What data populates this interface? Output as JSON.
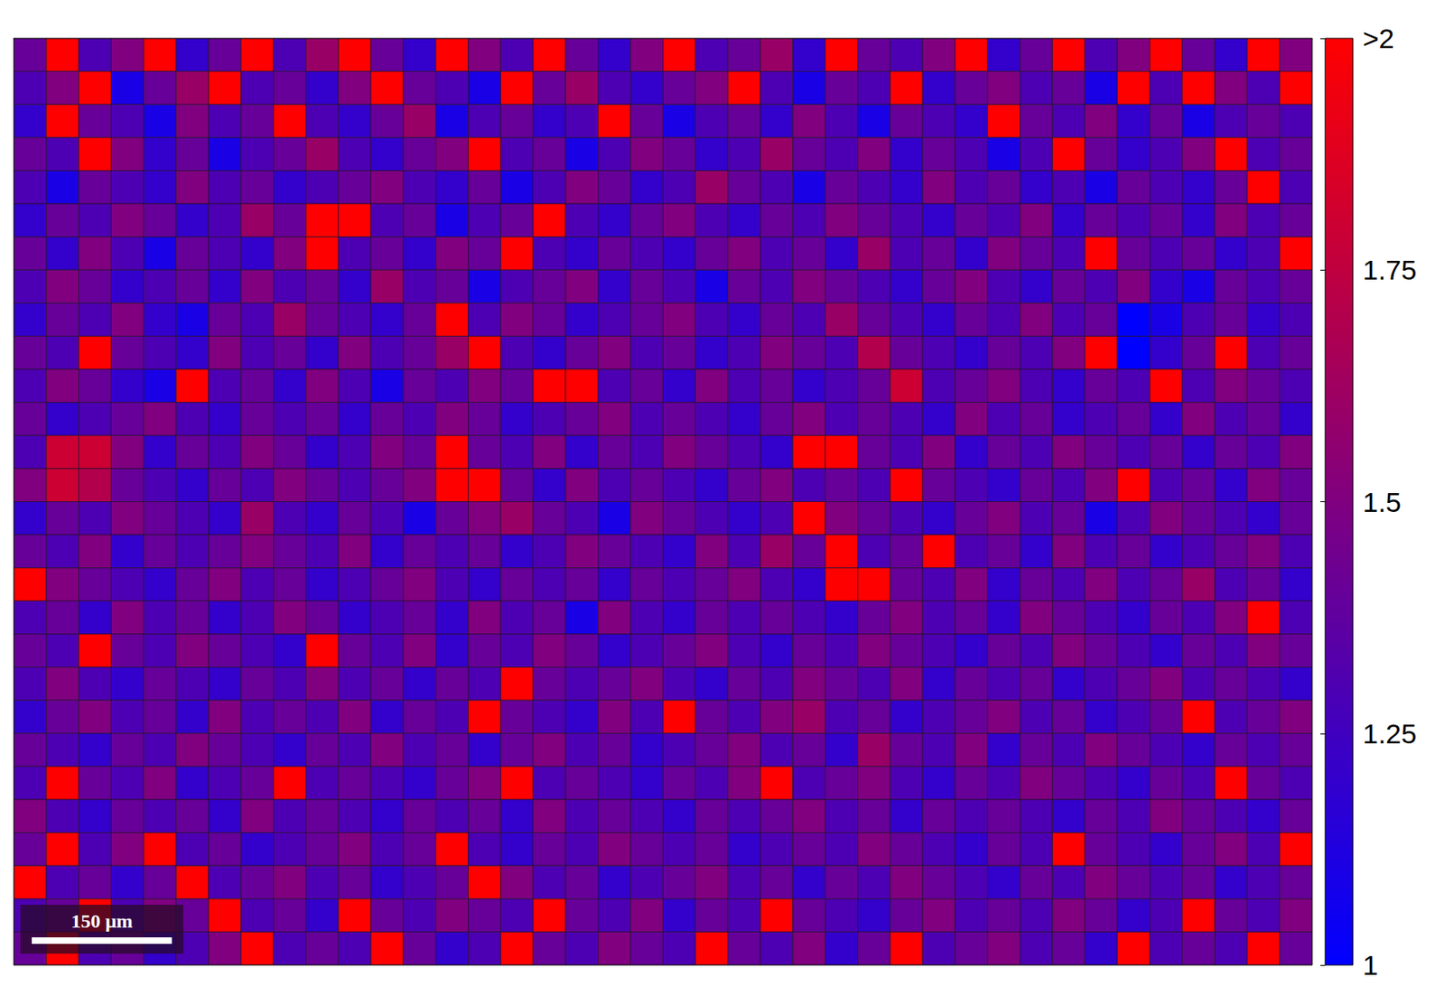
{
  "chart_data": {
    "type": "heatmap",
    "xlim": [
      0,
      1390
    ],
    "ylim": [
      0,
      960
    ],
    "tick_labels": false,
    "cells": [
      [
        1.4,
        2.2,
        1.3,
        1.5,
        2.2,
        1.2,
        1.4,
        2.2,
        1.3,
        1.6,
        2.2,
        1.4,
        1.2,
        2.2,
        1.5,
        1.3,
        2.2,
        1.4,
        1.2,
        1.5,
        2.2,
        1.3,
        1.4,
        1.6,
        1.2,
        2.2,
        1.4,
        1.3,
        1.5,
        2.2,
        1.2,
        1.4,
        2.2,
        1.3,
        1.5,
        2.2,
        1.4,
        1.2,
        2.2,
        1.5
      ],
      [
        1.3,
        1.5,
        2.2,
        1.1,
        1.4,
        1.6,
        2.2,
        1.3,
        1.4,
        1.2,
        1.5,
        2.2,
        1.4,
        1.3,
        1.1,
        2.2,
        1.4,
        1.6,
        1.3,
        1.2,
        1.4,
        1.5,
        2.2,
        1.3,
        1.1,
        1.4,
        1.3,
        2.2,
        1.2,
        1.4,
        1.5,
        1.3,
        1.4,
        1.1,
        2.2,
        1.3,
        2.2,
        1.5,
        1.3,
        2.2
      ],
      [
        1.2,
        2.2,
        1.4,
        1.3,
        1.1,
        1.5,
        1.3,
        1.4,
        2.2,
        1.3,
        1.2,
        1.4,
        1.6,
        1.1,
        1.3,
        1.4,
        1.2,
        1.3,
        2.2,
        1.4,
        1.1,
        1.3,
        1.4,
        1.2,
        1.5,
        1.3,
        1.1,
        1.4,
        1.3,
        1.2,
        2.2,
        1.4,
        1.3,
        1.5,
        1.2,
        1.4,
        1.1,
        1.3,
        1.4,
        1.3
      ],
      [
        1.4,
        1.3,
        2.2,
        1.5,
        1.2,
        1.4,
        1.1,
        1.3,
        1.4,
        1.6,
        1.3,
        1.2,
        1.4,
        1.5,
        2.2,
        1.3,
        1.4,
        1.1,
        1.3,
        1.5,
        1.4,
        1.2,
        1.3,
        1.6,
        1.4,
        1.3,
        1.5,
        1.2,
        1.4,
        1.3,
        1.1,
        1.3,
        2.2,
        1.4,
        1.2,
        1.3,
        1.5,
        2.2,
        1.3,
        1.4
      ],
      [
        1.3,
        1.1,
        1.4,
        1.3,
        1.2,
        1.5,
        1.3,
        1.4,
        1.2,
        1.3,
        1.4,
        1.5,
        1.3,
        1.2,
        1.4,
        1.1,
        1.3,
        1.5,
        1.4,
        1.2,
        1.3,
        1.6,
        1.4,
        1.3,
        1.1,
        1.4,
        1.3,
        1.2,
        1.5,
        1.3,
        1.4,
        1.2,
        1.3,
        1.1,
        1.4,
        1.3,
        1.2,
        1.4,
        2.2,
        1.3
      ],
      [
        1.2,
        1.4,
        1.3,
        1.5,
        1.4,
        1.2,
        1.3,
        1.6,
        1.4,
        2.2,
        2.2,
        1.3,
        1.4,
        1.1,
        1.3,
        1.4,
        2.2,
        1.3,
        1.2,
        1.4,
        1.5,
        1.3,
        1.2,
        1.4,
        1.3,
        1.5,
        1.4,
        1.3,
        1.2,
        1.4,
        1.3,
        1.5,
        1.2,
        1.4,
        1.3,
        1.4,
        1.2,
        1.5,
        1.3,
        1.4
      ],
      [
        1.4,
        1.2,
        1.5,
        1.3,
        1.1,
        1.4,
        1.3,
        1.2,
        1.5,
        2.2,
        1.3,
        1.4,
        1.2,
        1.5,
        1.4,
        2.2,
        1.3,
        1.2,
        1.4,
        1.3,
        1.2,
        1.4,
        1.5,
        1.3,
        1.4,
        1.2,
        1.6,
        1.3,
        1.4,
        1.2,
        1.5,
        1.4,
        1.3,
        2.2,
        1.4,
        1.3,
        1.4,
        1.2,
        1.3,
        2.2
      ],
      [
        1.3,
        1.5,
        1.4,
        1.2,
        1.3,
        1.4,
        1.2,
        1.5,
        1.3,
        1.4,
        1.2,
        1.6,
        1.3,
        1.4,
        1.1,
        1.3,
        1.4,
        1.5,
        1.2,
        1.4,
        1.3,
        1.1,
        1.4,
        1.3,
        1.5,
        1.4,
        1.3,
        1.2,
        1.4,
        1.5,
        1.3,
        1.2,
        1.4,
        1.3,
        1.5,
        1.2,
        1.1,
        1.4,
        1.3,
        1.4
      ],
      [
        1.2,
        1.4,
        1.3,
        1.5,
        1.2,
        1.1,
        1.4,
        1.3,
        1.6,
        1.4,
        1.3,
        1.2,
        1.4,
        2.2,
        1.3,
        1.5,
        1.4,
        1.2,
        1.3,
        1.4,
        1.5,
        1.3,
        1.2,
        1.4,
        1.3,
        1.6,
        1.4,
        1.3,
        1.2,
        1.4,
        1.3,
        1.5,
        1.3,
        1.4,
        1.0,
        1.1,
        1.3,
        1.4,
        1.2,
        1.3
      ],
      [
        1.4,
        1.3,
        2.2,
        1.4,
        1.3,
        1.2,
        1.5,
        1.3,
        1.4,
        1.2,
        1.5,
        1.3,
        1.4,
        1.6,
        2.2,
        1.3,
        1.2,
        1.4,
        1.5,
        1.3,
        1.4,
        1.2,
        1.3,
        1.5,
        1.4,
        1.3,
        1.7,
        1.4,
        1.3,
        1.2,
        1.4,
        1.3,
        1.5,
        2.2,
        1.0,
        1.2,
        1.4,
        2.2,
        1.3,
        1.4
      ],
      [
        1.3,
        1.5,
        1.4,
        1.2,
        1.1,
        2.2,
        1.3,
        1.4,
        1.2,
        1.5,
        1.3,
        1.1,
        1.4,
        1.3,
        1.5,
        1.4,
        2.2,
        2.2,
        1.3,
        1.4,
        1.2,
        1.5,
        1.3,
        1.4,
        1.2,
        1.3,
        1.4,
        1.8,
        1.3,
        1.4,
        1.5,
        1.3,
        1.2,
        1.4,
        1.3,
        2.2,
        1.3,
        1.5,
        1.4,
        1.3
      ],
      [
        1.4,
        1.2,
        1.3,
        1.4,
        1.5,
        1.3,
        1.2,
        1.4,
        1.3,
        1.4,
        1.2,
        1.4,
        1.3,
        1.5,
        1.4,
        1.2,
        1.3,
        1.4,
        1.5,
        1.3,
        1.4,
        1.3,
        1.2,
        1.4,
        1.5,
        1.3,
        1.4,
        1.3,
        1.2,
        1.5,
        1.3,
        1.4,
        1.2,
        1.3,
        1.4,
        1.2,
        1.5,
        1.3,
        1.4,
        1.2
      ],
      [
        1.3,
        1.8,
        1.8,
        1.5,
        1.2,
        1.4,
        1.3,
        1.5,
        1.4,
        1.2,
        1.3,
        1.5,
        1.4,
        2.2,
        1.4,
        1.3,
        1.5,
        1.2,
        1.4,
        1.3,
        1.5,
        1.4,
        1.3,
        1.2,
        2.2,
        2.2,
        1.4,
        1.3,
        1.5,
        1.2,
        1.4,
        1.3,
        1.5,
        1.4,
        1.3,
        1.4,
        1.2,
        1.4,
        1.3,
        1.5
      ],
      [
        1.5,
        1.8,
        1.7,
        1.4,
        1.3,
        1.2,
        1.4,
        1.3,
        1.5,
        1.4,
        1.3,
        1.4,
        1.5,
        2.2,
        2.2,
        1.4,
        1.2,
        1.5,
        1.3,
        1.4,
        1.3,
        1.2,
        1.4,
        1.5,
        1.3,
        1.4,
        1.3,
        2.2,
        1.4,
        1.3,
        1.2,
        1.4,
        1.3,
        1.5,
        2.2,
        1.3,
        1.4,
        1.2,
        1.5,
        1.4
      ],
      [
        1.2,
        1.4,
        1.3,
        1.5,
        1.4,
        1.3,
        1.2,
        1.6,
        1.3,
        1.2,
        1.4,
        1.3,
        1.1,
        1.4,
        1.5,
        1.6,
        1.4,
        1.3,
        1.1,
        1.5,
        1.4,
        1.3,
        1.2,
        1.3,
        2.2,
        1.5,
        1.4,
        1.3,
        1.2,
        1.4,
        1.5,
        1.3,
        1.4,
        1.1,
        1.3,
        1.5,
        1.4,
        1.3,
        1.2,
        1.4
      ],
      [
        1.4,
        1.3,
        1.5,
        1.2,
        1.4,
        1.3,
        1.4,
        1.5,
        1.4,
        1.3,
        1.5,
        1.2,
        1.4,
        1.3,
        1.4,
        1.2,
        1.3,
        1.5,
        1.4,
        1.3,
        1.2,
        1.5,
        1.3,
        1.6,
        1.4,
        2.2,
        1.3,
        1.4,
        2.2,
        1.3,
        1.4,
        1.2,
        1.5,
        1.3,
        1.4,
        1.2,
        1.3,
        1.4,
        1.5,
        1.3
      ],
      [
        2.2,
        1.5,
        1.4,
        1.3,
        1.2,
        1.4,
        1.5,
        1.3,
        1.4,
        1.2,
        1.3,
        1.4,
        1.5,
        1.3,
        1.2,
        1.4,
        1.3,
        1.4,
        1.2,
        1.4,
        1.3,
        1.4,
        1.5,
        1.3,
        1.2,
        2.2,
        2.2,
        1.4,
        1.3,
        1.5,
        1.2,
        1.4,
        1.3,
        1.5,
        1.3,
        1.4,
        1.6,
        1.3,
        1.4,
        1.2
      ],
      [
        1.3,
        1.4,
        1.2,
        1.5,
        1.3,
        1.4,
        1.2,
        1.3,
        1.5,
        1.4,
        1.2,
        1.3,
        1.4,
        1.2,
        1.5,
        1.3,
        1.4,
        1.1,
        1.5,
        1.3,
        1.2,
        1.4,
        1.3,
        1.4,
        1.3,
        1.2,
        1.4,
        1.5,
        1.3,
        1.4,
        1.2,
        1.5,
        1.4,
        1.3,
        1.2,
        1.4,
        1.3,
        1.5,
        2.2,
        1.3
      ],
      [
        1.4,
        1.3,
        2.2,
        1.4,
        1.3,
        1.5,
        1.4,
        1.3,
        1.2,
        2.2,
        1.4,
        1.3,
        1.5,
        1.2,
        1.4,
        1.3,
        1.5,
        1.4,
        1.2,
        1.3,
        1.4,
        1.5,
        1.3,
        1.2,
        1.4,
        1.3,
        1.5,
        1.4,
        1.3,
        1.2,
        1.4,
        1.3,
        1.5,
        1.4,
        1.3,
        1.2,
        1.4,
        1.3,
        1.5,
        1.4
      ],
      [
        1.3,
        1.5,
        1.3,
        1.2,
        1.4,
        1.3,
        1.2,
        1.4,
        1.3,
        1.5,
        1.3,
        1.4,
        1.2,
        1.4,
        1.3,
        2.2,
        1.4,
        1.3,
        1.4,
        1.5,
        1.3,
        1.2,
        1.4,
        1.3,
        1.5,
        1.4,
        1.3,
        1.5,
        1.2,
        1.4,
        1.3,
        1.4,
        1.2,
        1.3,
        1.4,
        1.5,
        1.3,
        1.4,
        1.3,
        1.2
      ],
      [
        1.2,
        1.4,
        1.5,
        1.3,
        1.4,
        1.2,
        1.5,
        1.3,
        1.4,
        1.3,
        1.5,
        1.2,
        1.4,
        1.3,
        2.2,
        1.4,
        1.3,
        1.2,
        1.5,
        1.3,
        2.2,
        1.4,
        1.3,
        1.5,
        1.6,
        1.3,
        1.4,
        1.2,
        1.3,
        1.4,
        1.5,
        1.3,
        1.4,
        1.2,
        1.3,
        1.4,
        2.2,
        1.3,
        1.4,
        1.5
      ],
      [
        1.4,
        1.3,
        1.2,
        1.4,
        1.3,
        1.5,
        1.4,
        1.3,
        1.2,
        1.4,
        1.3,
        1.5,
        1.3,
        1.4,
        1.2,
        1.4,
        1.5,
        1.3,
        1.4,
        1.2,
        1.3,
        1.4,
        1.5,
        1.3,
        1.4,
        1.2,
        1.6,
        1.4,
        1.3,
        1.5,
        1.2,
        1.4,
        1.3,
        1.5,
        1.4,
        1.3,
        1.2,
        1.4,
        1.3,
        1.4
      ],
      [
        1.3,
        2.2,
        1.4,
        1.3,
        1.5,
        1.2,
        1.3,
        1.4,
        2.2,
        1.3,
        1.4,
        1.3,
        1.2,
        1.4,
        1.5,
        2.2,
        1.3,
        1.4,
        1.3,
        1.2,
        1.4,
        1.3,
        1.5,
        2.2,
        1.3,
        1.4,
        1.5,
        1.3,
        1.2,
        1.4,
        1.3,
        1.5,
        1.4,
        1.3,
        1.2,
        1.4,
        1.3,
        2.2,
        1.4,
        1.3
      ],
      [
        1.5,
        1.3,
        1.2,
        1.4,
        1.3,
        1.4,
        1.2,
        1.5,
        1.3,
        1.4,
        1.3,
        1.2,
        1.4,
        1.3,
        1.4,
        1.2,
        1.5,
        1.3,
        1.4,
        1.3,
        1.2,
        1.4,
        1.3,
        1.4,
        1.5,
        1.3,
        1.4,
        1.2,
        1.4,
        1.3,
        1.4,
        1.3,
        1.2,
        1.4,
        1.3,
        1.5,
        1.4,
        1.3,
        1.2,
        1.4
      ],
      [
        1.4,
        2.2,
        1.3,
        1.5,
        2.2,
        1.3,
        1.4,
        1.2,
        1.3,
        1.4,
        1.5,
        1.3,
        1.4,
        2.2,
        1.3,
        1.2,
        1.4,
        1.3,
        1.5,
        1.4,
        1.3,
        1.4,
        1.2,
        1.3,
        1.4,
        1.3,
        1.5,
        1.4,
        1.3,
        1.2,
        1.4,
        1.3,
        2.2,
        1.4,
        1.3,
        1.2,
        1.4,
        1.5,
        1.3,
        2.2
      ],
      [
        2.2,
        1.3,
        1.4,
        1.2,
        1.4,
        2.2,
        1.3,
        1.4,
        1.5,
        1.3,
        1.4,
        1.2,
        1.3,
        1.4,
        2.2,
        1.5,
        1.3,
        1.4,
        1.2,
        1.3,
        1.4,
        1.5,
        1.3,
        1.4,
        1.2,
        1.4,
        1.3,
        1.5,
        1.4,
        1.3,
        1.2,
        1.4,
        1.3,
        1.5,
        1.4,
        1.3,
        1.4,
        1.2,
        1.3,
        1.4
      ],
      [
        1.3,
        1.4,
        2.2,
        1.3,
        1.5,
        1.4,
        2.2,
        1.3,
        1.4,
        1.2,
        2.2,
        1.4,
        1.3,
        1.5,
        1.4,
        1.3,
        2.2,
        1.4,
        1.3,
        1.5,
        1.2,
        1.4,
        1.3,
        2.2,
        1.4,
        1.3,
        1.2,
        1.4,
        1.5,
        1.3,
        1.4,
        1.3,
        1.5,
        1.4,
        1.2,
        1.3,
        2.2,
        1.4,
        1.3,
        1.5
      ],
      [
        1.4,
        2.2,
        1.3,
        1.4,
        1.2,
        1.3,
        1.5,
        2.2,
        1.3,
        1.4,
        1.3,
        2.2,
        1.4,
        1.2,
        1.3,
        2.2,
        1.4,
        1.3,
        1.5,
        1.4,
        1.3,
        2.2,
        1.4,
        1.3,
        1.5,
        1.2,
        1.4,
        2.2,
        1.3,
        1.4,
        1.5,
        1.3,
        1.4,
        1.2,
        2.2,
        1.3,
        1.4,
        1.3,
        2.2,
        1.4
      ]
    ],
    "colorbar": {
      "range": [
        1,
        2
      ],
      "ticks": [
        1,
        1.25,
        1.5,
        1.75,
        {
          "value": 2,
          "label": ">2"
        }
      ],
      "colors": [
        "#0000ff",
        "#ff0000"
      ]
    },
    "scale_bar": {
      "length": 150,
      "label": "150 μm"
    }
  }
}
